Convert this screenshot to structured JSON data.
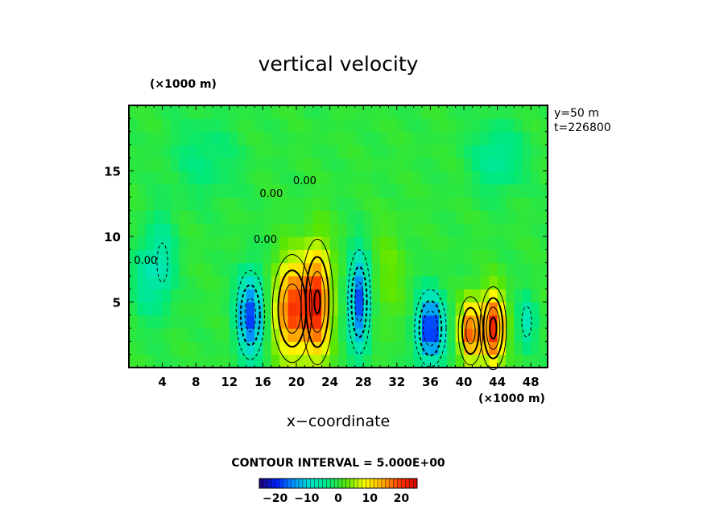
{
  "chart_data": {
    "type": "heatmap",
    "title": "vertical velocity",
    "xlabel": "x−coordinate",
    "x_unit": "(×1000 m)",
    "y_unit": "(×1000 m)",
    "xlim": [
      0,
      50
    ],
    "ylim": [
      0,
      20
    ],
    "x_ticks": [
      4,
      8,
      12,
      16,
      20,
      24,
      28,
      32,
      36,
      40,
      44,
      48
    ],
    "y_ticks": [
      5,
      10,
      15
    ],
    "info": [
      "y=50  m",
      "t=226800"
    ],
    "contour_interval_text": "CONTOUR INTERVAL = 5.000E+00",
    "contour_interval": 5.0,
    "zero_contour_label": "0.00",
    "colorbar_ticks": [
      "−20",
      "−10",
      "0",
      "10",
      "20"
    ],
    "colorbar_tick_values": [
      -20,
      -10,
      0,
      10,
      20
    ],
    "colorbar_range": [
      -25,
      25
    ],
    "colormap": [
      "#1a0070",
      "#0022ff",
      "#0099ff",
      "#00e6c8",
      "#00e87a",
      "#5ce600",
      "#ffff00",
      "#ffb000",
      "#ff3a00",
      "#d40000",
      "#ffb0b0"
    ],
    "features": [
      {
        "x": 14.5,
        "y": 4.0,
        "value": -18,
        "sx": 1.5,
        "sy": 3.0
      },
      {
        "x": 19.5,
        "y": 4.5,
        "value": 20,
        "sx": 2.0,
        "sy": 3.5
      },
      {
        "x": 22.5,
        "y": 5.0,
        "value": 21,
        "sx": 1.6,
        "sy": 4.0
      },
      {
        "x": 27.5,
        "y": 5.0,
        "value": -18,
        "sx": 1.2,
        "sy": 3.5
      },
      {
        "x": 36.0,
        "y": 3.0,
        "value": -20,
        "sx": 1.6,
        "sy": 2.5
      },
      {
        "x": 40.8,
        "y": 2.8,
        "value": 18,
        "sx": 1.3,
        "sy": 2.3
      },
      {
        "x": 43.5,
        "y": 3.0,
        "value": 22,
        "sx": 1.3,
        "sy": 2.6
      },
      {
        "x": 47.5,
        "y": 3.5,
        "value": -7,
        "sx": 1.0,
        "sy": 2.0
      },
      {
        "x": 4.0,
        "y": 8.0,
        "value": -6,
        "sx": 1.5,
        "sy": 3.5
      },
      {
        "x": 2.0,
        "y": 7.0,
        "value": -5,
        "sx": 1.5,
        "sy": 3.0
      },
      {
        "x": 9.0,
        "y": 16.0,
        "value": -3,
        "sx": 4.0,
        "sy": 3.0
      },
      {
        "x": 44.0,
        "y": 16.0,
        "value": -5,
        "sx": 3.0,
        "sy": 2.5
      },
      {
        "x": 31.0,
        "y": 7.0,
        "value": 3,
        "sx": 2.0,
        "sy": 4.0
      }
    ]
  }
}
